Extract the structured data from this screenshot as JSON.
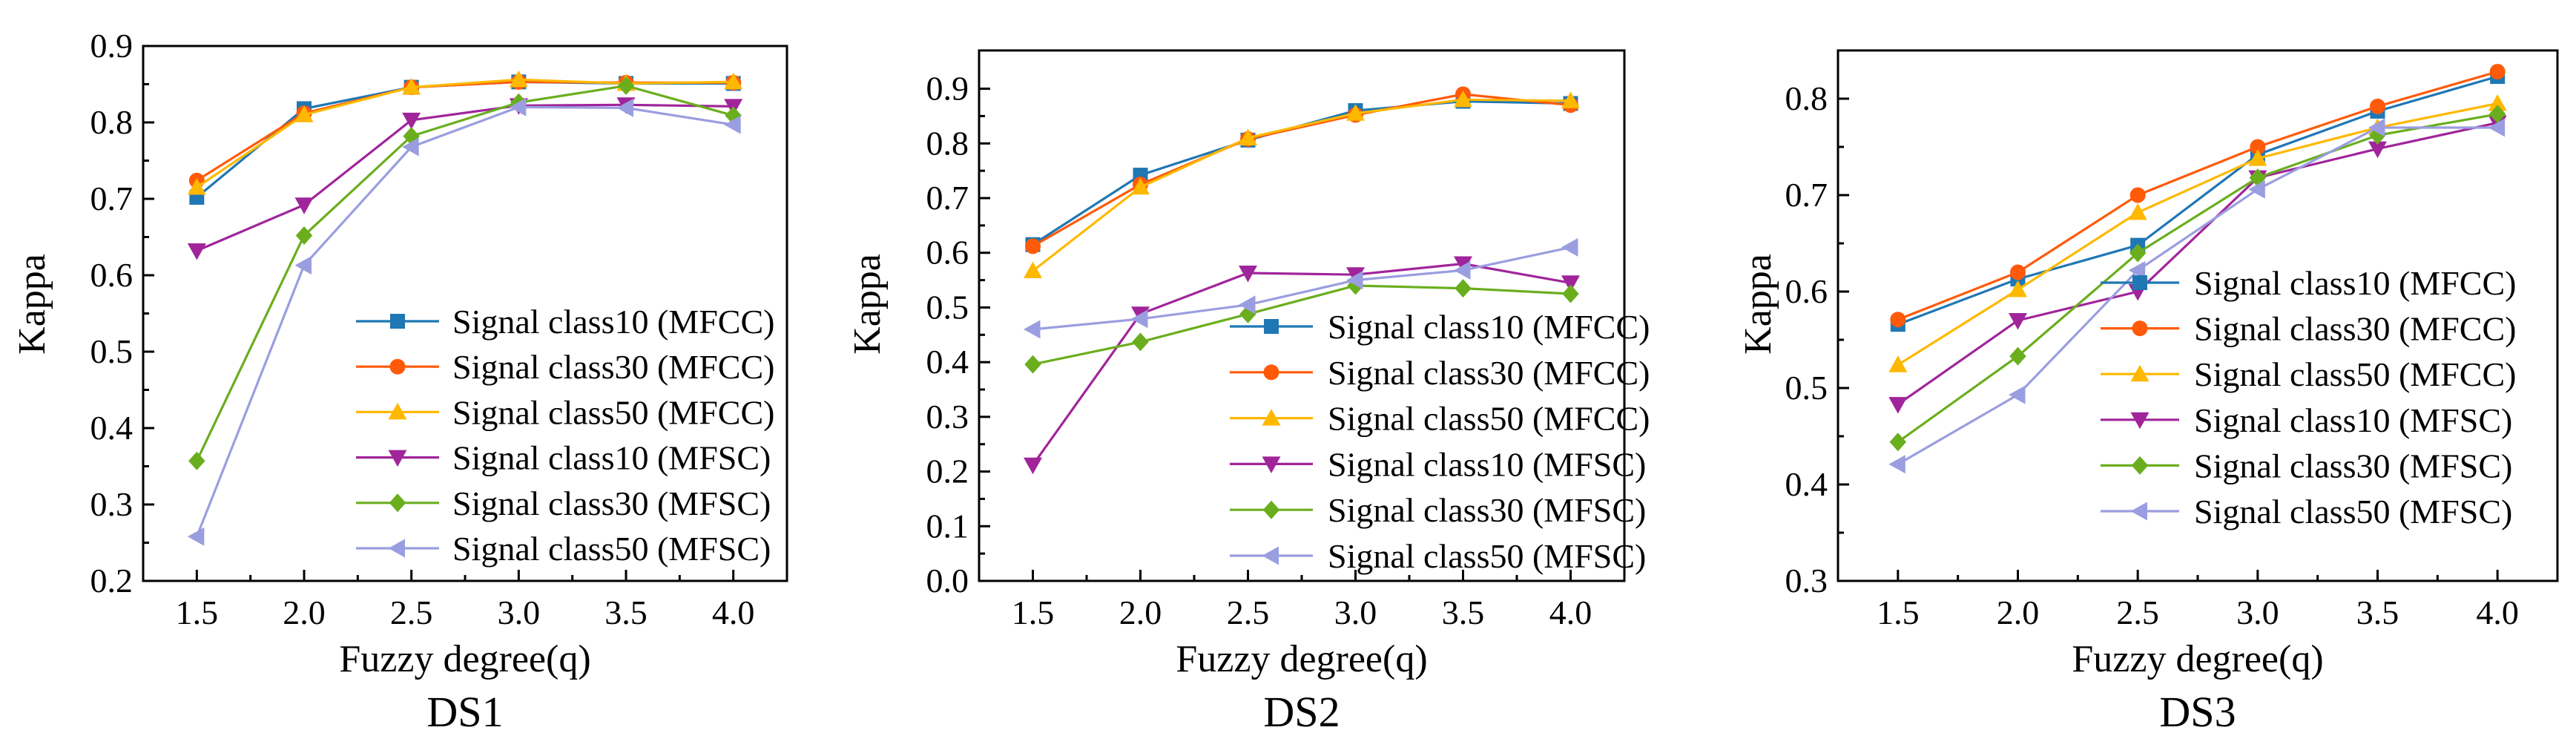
{
  "chart_data": [
    {
      "type": "line",
      "title": "DS1",
      "xlabel": "Fuzzy degree(q)",
      "ylabel": "Kappa",
      "x": [
        1.5,
        2.0,
        2.5,
        3.0,
        3.5,
        4.0
      ],
      "x_tick_labels": [
        "1.5",
        "2.0",
        "2.5",
        "3.0",
        "3.5",
        "4.0"
      ],
      "xlim": [
        1.25,
        4.25
      ],
      "ylim": [
        0.2,
        0.9
      ],
      "y_ticks": [
        0.2,
        0.3,
        0.4,
        0.5,
        0.6,
        0.7,
        0.8,
        0.9
      ],
      "y_tick_labels": [
        "0.2",
        "0.3",
        "0.4",
        "0.5",
        "0.6",
        "0.7",
        "0.8",
        "0.9"
      ],
      "grid": false,
      "legend_position": "bottom-right",
      "series": [
        {
          "name": "Signal class10 (MFCC)",
          "color": "#1F77B4",
          "marker": "square",
          "values": [
            0.702,
            0.818,
            0.846,
            0.853,
            0.851,
            0.851
          ]
        },
        {
          "name": "Signal class30 (MFCC)",
          "color": "#FF5A0A",
          "marker": "circle",
          "values": [
            0.724,
            0.812,
            0.846,
            0.853,
            0.852,
            0.852
          ]
        },
        {
          "name": "Signal class50 (MFCC)",
          "color": "#FFB800",
          "marker": "triangle-up",
          "values": [
            0.715,
            0.81,
            0.846,
            0.856,
            0.851,
            0.853
          ]
        },
        {
          "name": "Signal class10 (MFSC)",
          "color": "#A0259B",
          "marker": "triangle-down",
          "values": [
            0.632,
            0.692,
            0.803,
            0.822,
            0.823,
            0.821
          ]
        },
        {
          "name": "Signal class30 (MFSC)",
          "color": "#6AAE1E",
          "marker": "diamond",
          "values": [
            0.357,
            0.652,
            0.782,
            0.826,
            0.848,
            0.809
          ]
        },
        {
          "name": "Signal class50 (MFSC)",
          "color": "#9A9EE0",
          "marker": "triangle-left",
          "values": [
            0.258,
            0.613,
            0.768,
            0.82,
            0.819,
            0.797
          ]
        }
      ]
    },
    {
      "type": "line",
      "title": "DS2",
      "xlabel": "Fuzzy degree(q)",
      "ylabel": "Kappa",
      "x": [
        1.5,
        2.0,
        2.5,
        3.0,
        3.5,
        4.0
      ],
      "x_tick_labels": [
        "1.5",
        "2.0",
        "2.5",
        "3.0",
        "3.5",
        "4.0"
      ],
      "xlim": [
        1.25,
        4.25
      ],
      "ylim": [
        0.0,
        0.97
      ],
      "y_ticks": [
        0.0,
        0.1,
        0.2,
        0.3,
        0.4,
        0.5,
        0.6,
        0.7,
        0.8,
        0.9
      ],
      "y_tick_labels": [
        "0.0",
        "0.1",
        "0.2",
        "0.3",
        "0.4",
        "0.5",
        "0.6",
        "0.7",
        "0.8",
        "0.9"
      ],
      "grid": false,
      "legend_position": "bottom-right",
      "series": [
        {
          "name": "Signal class10 (MFCC)",
          "color": "#1F77B4",
          "marker": "square",
          "values": [
            0.615,
            0.742,
            0.806,
            0.86,
            0.877,
            0.873
          ]
        },
        {
          "name": "Signal class30 (MFCC)",
          "color": "#FF5A0A",
          "marker": "circle",
          "values": [
            0.612,
            0.725,
            0.808,
            0.852,
            0.89,
            0.87
          ]
        },
        {
          "name": "Signal class50 (MFCC)",
          "color": "#FFB800",
          "marker": "triangle-up",
          "values": [
            0.567,
            0.72,
            0.81,
            0.855,
            0.88,
            0.878
          ]
        },
        {
          "name": "Signal class10 (MFSC)",
          "color": "#A0259B",
          "marker": "triangle-down",
          "values": [
            0.212,
            0.488,
            0.563,
            0.56,
            0.58,
            0.545
          ]
        },
        {
          "name": "Signal class30 (MFSC)",
          "color": "#6AAE1E",
          "marker": "diamond",
          "values": [
            0.396,
            0.437,
            0.488,
            0.54,
            0.535,
            0.525
          ]
        },
        {
          "name": "Signal class50 (MFSC)",
          "color": "#9A9EE0",
          "marker": "triangle-left",
          "values": [
            0.46,
            0.479,
            0.505,
            0.55,
            0.568,
            0.61
          ]
        }
      ]
    },
    {
      "type": "line",
      "title": "DS3",
      "xlabel": "Fuzzy degree(q)",
      "ylabel": "Kappa",
      "x": [
        1.5,
        2.0,
        2.5,
        3.0,
        3.5,
        4.0
      ],
      "x_tick_labels": [
        "1.5",
        "2.0",
        "2.5",
        "3.0",
        "3.5",
        "4.0"
      ],
      "xlim": [
        1.25,
        4.25
      ],
      "ylim": [
        0.3,
        0.85
      ],
      "y_ticks": [
        0.3,
        0.4,
        0.5,
        0.6,
        0.7,
        0.8
      ],
      "y_tick_labels": [
        "0.3",
        "0.4",
        "0.5",
        "0.6",
        "0.7",
        "0.8"
      ],
      "grid": false,
      "legend_position": "bottom-right",
      "series": [
        {
          "name": "Signal class10 (MFCC)",
          "color": "#1F77B4",
          "marker": "square",
          "values": [
            0.566,
            0.613,
            0.648,
            0.742,
            0.787,
            0.823
          ]
        },
        {
          "name": "Signal class30 (MFCC)",
          "color": "#FF5A0A",
          "marker": "circle",
          "values": [
            0.571,
            0.62,
            0.7,
            0.75,
            0.792,
            0.828
          ]
        },
        {
          "name": "Signal class50 (MFCC)",
          "color": "#FFB800",
          "marker": "triangle-up",
          "values": [
            0.524,
            0.602,
            0.682,
            0.738,
            0.77,
            0.795
          ]
        },
        {
          "name": "Signal class10 (MFSC)",
          "color": "#A0259B",
          "marker": "triangle-down",
          "values": [
            0.483,
            0.57,
            0.6,
            0.718,
            0.748,
            0.775
          ]
        },
        {
          "name": "Signal class30 (MFSC)",
          "color": "#6AAE1E",
          "marker": "diamond",
          "values": [
            0.444,
            0.533,
            0.64,
            0.718,
            0.762,
            0.784
          ]
        },
        {
          "name": "Signal class50 (MFSC)",
          "color": "#9A9EE0",
          "marker": "triangle-left",
          "values": [
            0.421,
            0.493,
            0.622,
            0.706,
            0.77,
            0.77
          ]
        }
      ]
    }
  ]
}
